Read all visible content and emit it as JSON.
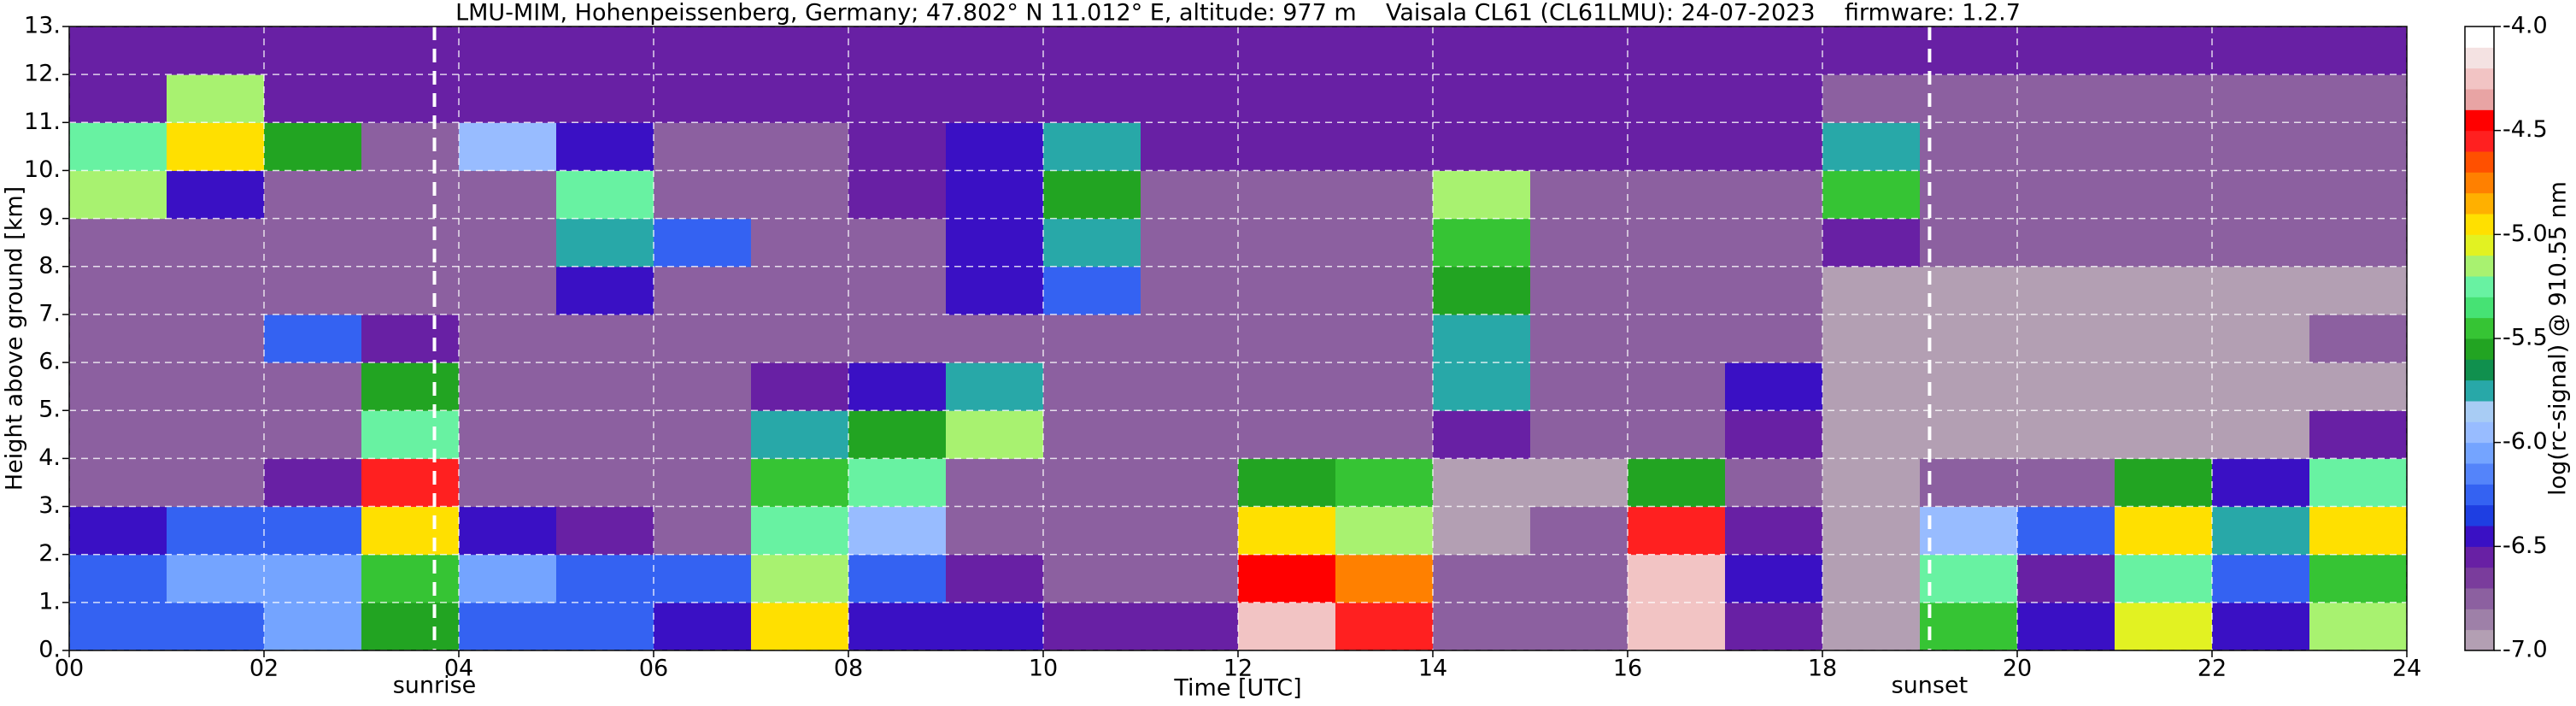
{
  "chart_data": {
    "type": "heatmap",
    "title": "LMU-MIM, Hohenpeissenberg, Germany; 47.802° N 11.012° E, altitude: 977 m    Vaisala CL61 (CL61LMU): 24-07-2023    firmware: 1.2.7",
    "x_label": "Time [UTC]",
    "y_label": "Height above ground [km]",
    "colorbar_label": "log(rc-signal) @ 910.55 nm",
    "xlim": [
      0,
      24
    ],
    "ylim": [
      0,
      13
    ],
    "clim": [
      -7,
      -4
    ],
    "xticks": [
      {
        "value": 0,
        "label": "00"
      },
      {
        "value": 2,
        "label": "02"
      },
      {
        "value": 4,
        "label": "04"
      },
      {
        "value": 6,
        "label": "06"
      },
      {
        "value": 8,
        "label": "08"
      },
      {
        "value": 10,
        "label": "10"
      },
      {
        "value": 12,
        "label": "12"
      },
      {
        "value": 14,
        "label": "14"
      },
      {
        "value": 16,
        "label": "16"
      },
      {
        "value": 18,
        "label": "18"
      },
      {
        "value": 20,
        "label": "20"
      },
      {
        "value": 22,
        "label": "22"
      },
      {
        "value": 24,
        "label": "24"
      }
    ],
    "yticks": [
      {
        "value": 0,
        "label": "0."
      },
      {
        "value": 1,
        "label": "1."
      },
      {
        "value": 2,
        "label": "2."
      },
      {
        "value": 3,
        "label": "3."
      },
      {
        "value": 4,
        "label": "4."
      },
      {
        "value": 5,
        "label": "5."
      },
      {
        "value": 6,
        "label": "6."
      },
      {
        "value": 7,
        "label": "7."
      },
      {
        "value": 8,
        "label": "8."
      },
      {
        "value": 9,
        "label": "9."
      },
      {
        "value": 10,
        "label": "10."
      },
      {
        "value": 11,
        "label": "11."
      },
      {
        "value": 12,
        "label": "12."
      },
      {
        "value": 13,
        "label": "13."
      }
    ],
    "cticks": [
      {
        "value": -4,
        "label": "-4.0"
      },
      -4.5,
      {
        "value": -5,
        "label": "-5.0"
      },
      -5.5,
      {
        "value": -6,
        "label": "-6.0"
      },
      -6.5,
      {
        "value": -7,
        "label": "-7.0"
      }
    ],
    "grid": true,
    "colorscale": [
      "#b39fb3",
      "#9e80a8",
      "#8c60a0",
      "#7a3c9c",
      "#6820a4",
      "#3a10c4",
      "#1e3ee2",
      "#3462f2",
      "#5484fa",
      "#74a4ff",
      "#98bcff",
      "#a8ccf4",
      "#28a8a8",
      "#10904e",
      "#22a422",
      "#36c434",
      "#46e274",
      "#68f2a2",
      "#a8f270",
      "#e2f222",
      "#ffe000",
      "#ffb000",
      "#ff8000",
      "#ff5000",
      "#ff2020",
      "#ff0000",
      "#e8a4a4",
      "#f2c4c4",
      "#f4e2e2",
      "#ffffff"
    ],
    "annotations": [
      {
        "text": "sunrise",
        "x": 3.75
      },
      {
        "text": "sunset",
        "x": 19.1
      }
    ],
    "xbins": [
      0,
      1,
      2,
      3,
      4,
      5,
      6,
      7,
      8,
      9,
      10,
      11,
      12,
      13,
      14,
      15,
      16,
      17,
      18,
      19,
      20,
      21,
      22,
      23,
      24
    ],
    "ybins": [
      0,
      1,
      2,
      3,
      4,
      5,
      6,
      7,
      8,
      9,
      10,
      11,
      12,
      13
    ],
    "z": [
      [
        -6.2,
        -6.2,
        -6.1,
        -5.6,
        -6.2,
        -6.3,
        -6.4,
        -5.0,
        -6.5,
        -6.5,
        -6.6,
        -6.6,
        -4.3,
        -4.6,
        -6.8,
        -6.8,
        -4.2,
        -6.6,
        -6.9,
        -5.4,
        -6.5,
        -5.1,
        -6.5,
        -5.2
      ],
      [
        -6.2,
        -6.1,
        -6.1,
        -5.4,
        -6.1,
        -6.2,
        -6.2,
        -5.2,
        -6.3,
        -6.6,
        -6.7,
        -6.7,
        -4.4,
        -4.8,
        -6.8,
        -6.7,
        -4.3,
        -6.5,
        -6.9,
        -5.3,
        -6.6,
        -5.3,
        -6.3,
        -5.4
      ],
      [
        -6.4,
        -6.3,
        -6.2,
        -5.0,
        -6.4,
        -6.6,
        -6.7,
        -5.3,
        -6.0,
        -6.7,
        -6.8,
        -6.8,
        -5.0,
        -5.2,
        -6.9,
        -6.8,
        -4.6,
        -6.6,
        -6.9,
        -5.9,
        -6.3,
        -5.0,
        -5.8,
        -4.9
      ],
      [
        -6.7,
        -6.7,
        -6.6,
        -4.6,
        -6.8,
        -6.8,
        -6.8,
        -5.5,
        -5.3,
        -6.7,
        -6.8,
        -6.8,
        -5.6,
        -5.4,
        -6.9,
        -6.9,
        -5.6,
        -6.8,
        -6.9,
        -6.8,
        -6.8,
        -5.6,
        -6.5,
        -5.3
      ],
      [
        -6.8,
        -6.8,
        -6.8,
        -5.3,
        -6.8,
        -6.8,
        -6.8,
        -5.8,
        -5.6,
        -5.2,
        -6.8,
        -6.8,
        -6.8,
        -6.8,
        -6.6,
        -6.8,
        -6.8,
        -6.6,
        -6.9,
        -6.9,
        -6.9,
        -6.9,
        -6.9,
        -6.6
      ],
      [
        -6.8,
        -6.8,
        -6.7,
        -5.6,
        -6.8,
        -6.8,
        -6.8,
        -6.6,
        -6.4,
        -5.8,
        -6.8,
        -6.8,
        -6.8,
        -6.8,
        -5.8,
        -6.8,
        -6.8,
        -6.5,
        -6.9,
        -6.9,
        -6.9,
        -6.9,
        -6.9,
        -6.9
      ],
      [
        -6.8,
        -6.8,
        -6.2,
        -6.6,
        -6.8,
        -6.8,
        -6.8,
        -6.8,
        -6.8,
        -6.8,
        -6.8,
        -6.8,
        -6.8,
        -6.8,
        -5.7,
        -6.8,
        -6.8,
        -6.8,
        -6.9,
        -6.9,
        -6.9,
        -6.9,
        -6.9,
        -6.8
      ],
      [
        -6.8,
        -6.8,
        -6.8,
        -6.8,
        -6.8,
        -6.4,
        -6.8,
        -6.8,
        -6.8,
        -6.5,
        -6.2,
        -6.8,
        -6.8,
        -6.8,
        -5.6,
        -6.8,
        -6.8,
        -6.8,
        -6.9,
        -6.9,
        -6.9,
        -6.9,
        -6.9,
        -6.9
      ],
      [
        -6.8,
        -6.8,
        -6.8,
        -6.8,
        -6.8,
        -5.8,
        -6.3,
        -6.7,
        -6.7,
        -6.5,
        -5.8,
        -6.7,
        -6.7,
        -6.7,
        -5.5,
        -6.7,
        -6.7,
        -6.7,
        -6.6,
        -6.8,
        -6.8,
        -6.8,
        -6.8,
        -6.8
      ],
      [
        -5.2,
        -6.5,
        -6.8,
        -6.7,
        -6.7,
        -5.3,
        -6.7,
        -6.7,
        -6.6,
        -6.5,
        -5.6,
        -6.7,
        -6.7,
        -6.7,
        -5.2,
        -6.7,
        -6.7,
        -6.7,
        -5.5,
        -6.7,
        -6.7,
        -6.7,
        -6.7,
        -6.7
      ],
      [
        -5.3,
        -5.0,
        -5.6,
        -6.7,
        -5.9,
        -6.5,
        -6.7,
        -6.7,
        -6.6,
        -6.5,
        -5.8,
        -6.6,
        -6.6,
        -6.6,
        -6.6,
        -6.6,
        -6.6,
        -6.6,
        -5.8,
        -6.7,
        -6.7,
        -6.7,
        -6.7,
        -6.7
      ],
      [
        -6.6,
        -5.2,
        -6.6,
        -6.6,
        -6.6,
        -6.6,
        -6.6,
        -6.6,
        -6.6,
        -6.6,
        -6.6,
        -6.6,
        -6.6,
        -6.6,
        -6.6,
        -6.6,
        -6.6,
        -6.6,
        -6.7,
        -6.7,
        -6.7,
        -6.7,
        -6.7,
        -6.7
      ],
      [
        -6.6,
        -6.6,
        -6.6,
        -6.6,
        -6.6,
        -6.6,
        -6.6,
        -6.6,
        -6.6,
        -6.6,
        -6.6,
        -6.6,
        -6.6,
        -6.6,
        -6.6,
        -6.6,
        -6.6,
        -6.6,
        -6.6,
        -6.6,
        -6.6,
        -6.6,
        -6.6,
        -6.6
      ]
    ]
  }
}
